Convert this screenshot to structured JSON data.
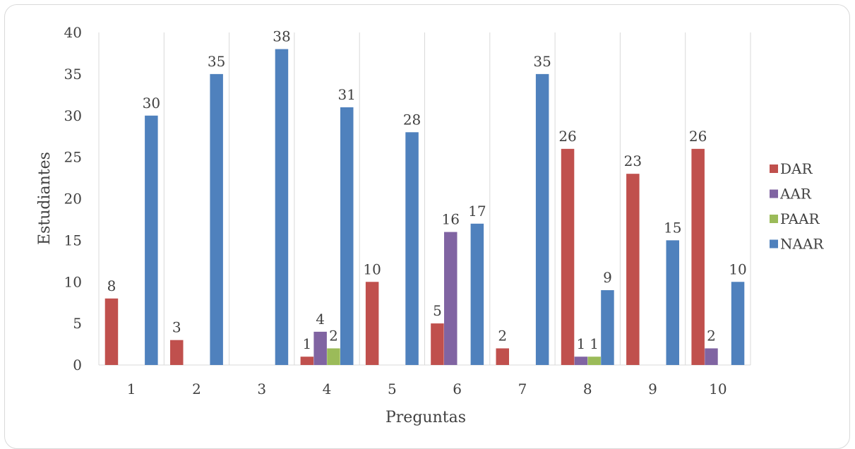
{
  "chart_data": {
    "type": "bar",
    "categories": [
      "1",
      "2",
      "3",
      "4",
      "5",
      "6",
      "7",
      "8",
      "9",
      "10"
    ],
    "series": [
      {
        "name": "DAR",
        "color": "#c0504d",
        "values": [
          8,
          3,
          0,
          1,
          10,
          5,
          2,
          26,
          23,
          26
        ]
      },
      {
        "name": "AAR",
        "color": "#8064a2",
        "values": [
          0,
          0,
          0,
          4,
          0,
          16,
          0,
          1,
          0,
          2
        ]
      },
      {
        "name": "PAAR",
        "color": "#9bbb59",
        "values": [
          0,
          0,
          0,
          2,
          0,
          0,
          0,
          1,
          0,
          0
        ]
      },
      {
        "name": "NAAR",
        "color": "#4f81bd",
        "values": [
          30,
          35,
          38,
          31,
          28,
          17,
          35,
          9,
          15,
          10
        ]
      }
    ],
    "xlabel": "Preguntas",
    "ylabel": "Estudiantes",
    "ylim": [
      0,
      40
    ],
    "yticks": [
      "0",
      "5",
      "10",
      "15",
      "20",
      "25",
      "30",
      "35",
      "40"
    ],
    "legend_position": "right",
    "grid": "vertical category separators",
    "gridline_color": "#d9d9d9"
  }
}
